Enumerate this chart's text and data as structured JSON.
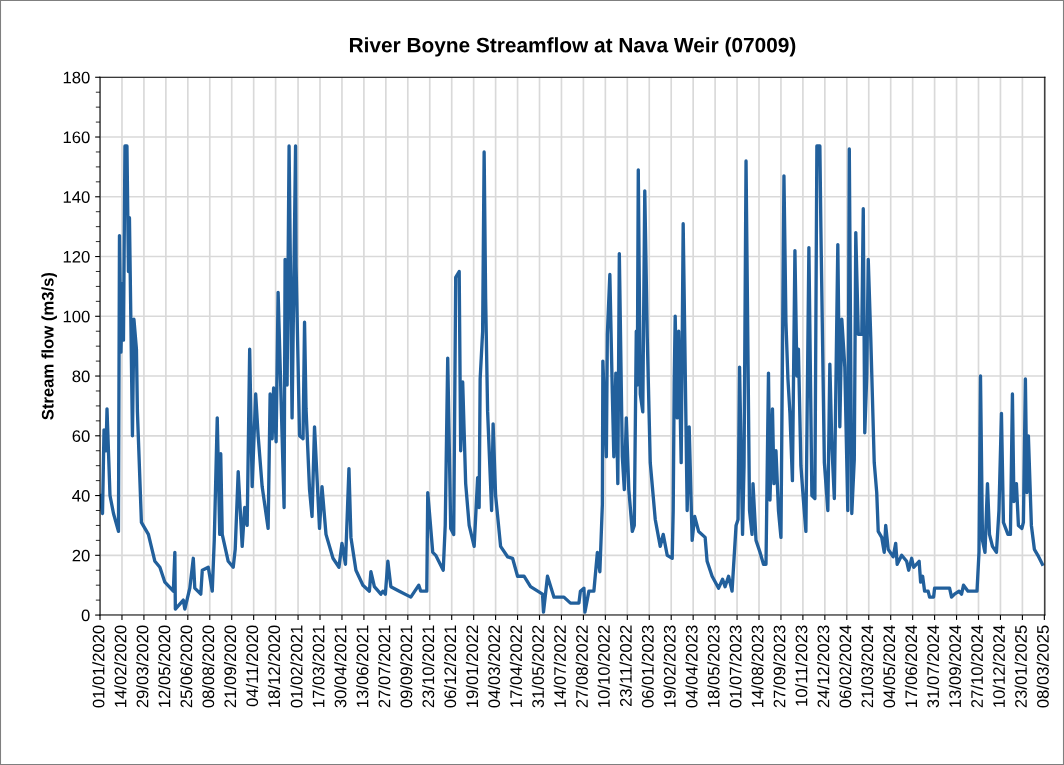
{
  "chart_data": {
    "type": "line",
    "title": "River Boyne Streamflow at Nava Weir (07009)",
    "ylabel": "Stream flow (m3/s)",
    "ylim": [
      0,
      180
    ],
    "yticks": [
      0,
      20,
      40,
      60,
      80,
      100,
      120,
      140,
      160,
      180
    ],
    "xlim": [
      "2020-01-01",
      "2025-03-09"
    ],
    "xticks": [
      {
        "value": "2020-01-01",
        "label": "01/01/2020"
      },
      {
        "value": "2020-02-14",
        "label": "14/02/2020"
      },
      {
        "value": "2020-03-29",
        "label": "29/03/2020"
      },
      {
        "value": "2020-05-12",
        "label": "12/05/2020"
      },
      {
        "value": "2020-06-25",
        "label": "25/06/2020"
      },
      {
        "value": "2020-08-08",
        "label": "08/08/2020"
      },
      {
        "value": "2020-09-21",
        "label": "21/09/2020"
      },
      {
        "value": "2020-11-04",
        "label": "04/11/2020"
      },
      {
        "value": "2020-12-18",
        "label": "18/12/2020"
      },
      {
        "value": "2021-02-01",
        "label": "01/02/2021"
      },
      {
        "value": "2021-03-17",
        "label": "17/03/2021"
      },
      {
        "value": "2021-04-30",
        "label": "30/04/2021"
      },
      {
        "value": "2021-06-13",
        "label": "13/06/2021"
      },
      {
        "value": "2021-07-27",
        "label": "27/07/2021"
      },
      {
        "value": "2021-09-09",
        "label": "09/09/2021"
      },
      {
        "value": "2021-10-23",
        "label": "23/10/2021"
      },
      {
        "value": "2021-12-06",
        "label": "06/12/2021"
      },
      {
        "value": "2022-01-19",
        "label": "19/01/2022"
      },
      {
        "value": "2022-03-04",
        "label": "04/03/2022"
      },
      {
        "value": "2022-04-17",
        "label": "17/04/2022"
      },
      {
        "value": "2022-05-31",
        "label": "31/05/2022"
      },
      {
        "value": "2022-07-14",
        "label": "14/07/2022"
      },
      {
        "value": "2022-08-27",
        "label": "27/08/2022"
      },
      {
        "value": "2022-10-10",
        "label": "10/10/2022"
      },
      {
        "value": "2022-11-23",
        "label": "23/11/2022"
      },
      {
        "value": "2023-01-06",
        "label": "06/01/2023"
      },
      {
        "value": "2023-02-19",
        "label": "19/02/2023"
      },
      {
        "value": "2023-04-04",
        "label": "04/04/2023"
      },
      {
        "value": "2023-05-18",
        "label": "18/05/2023"
      },
      {
        "value": "2023-07-01",
        "label": "01/07/2023"
      },
      {
        "value": "2023-08-14",
        "label": "14/08/2023"
      },
      {
        "value": "2023-09-27",
        "label": "27/09/2023"
      },
      {
        "value": "2023-11-10",
        "label": "10/11/2023"
      },
      {
        "value": "2023-12-24",
        "label": "24/12/2023"
      },
      {
        "value": "2024-02-06",
        "label": "06/02/2024"
      },
      {
        "value": "2024-03-21",
        "label": "21/03/2024"
      },
      {
        "value": "2024-05-04",
        "label": "04/05/2024"
      },
      {
        "value": "2024-06-17",
        "label": "17/06/2024"
      },
      {
        "value": "2024-07-31",
        "label": "31/07/2024"
      },
      {
        "value": "2024-09-13",
        "label": "13/09/2024"
      },
      {
        "value": "2024-10-27",
        "label": "27/10/2024"
      },
      {
        "value": "2024-12-10",
        "label": "10/12/2024"
      },
      {
        "value": "2025-01-23",
        "label": "23/01/2025"
      },
      {
        "value": "2025-03-08",
        "label": "08/03/2025"
      }
    ],
    "grid": true,
    "legend": false,
    "marker": "none",
    "line_style": "solid",
    "series": [
      {
        "color": "#22609c",
        "x": [
          "2020-01-01",
          "2020-01-06",
          "2020-01-09",
          "2020-01-13",
          "2020-01-15",
          "2020-01-21",
          "2020-01-28",
          "2020-02-07",
          "2020-02-09",
          "2020-02-12",
          "2020-02-15",
          "2020-02-17",
          "2020-02-20",
          "2020-02-24",
          "2020-02-27",
          "2020-02-29",
          "2020-03-06",
          "2020-03-09",
          "2020-03-14",
          "2020-03-16",
          "2020-03-24",
          "2020-04-07",
          "2020-04-20",
          "2020-04-30",
          "2020-05-10",
          "2020-05-27",
          "2020-05-30",
          "2020-05-31",
          "2020-06-16",
          "2020-06-19",
          "2020-06-29",
          "2020-07-06",
          "2020-07-09",
          "2020-07-21",
          "2020-07-24",
          "2020-08-05",
          "2020-08-13",
          "2020-08-17",
          "2020-08-23",
          "2020-08-28",
          "2020-08-30",
          "2020-09-02",
          "2020-09-14",
          "2020-09-24",
          "2020-09-28",
          "2020-10-04",
          "2020-10-12",
          "2020-10-17",
          "2020-10-22",
          "2020-10-27",
          "2020-11-01",
          "2020-11-08",
          "2020-11-13",
          "2020-11-21",
          "2020-12-03",
          "2020-12-07",
          "2020-12-11",
          "2020-12-14",
          "2020-12-19",
          "2020-12-23",
          "2021-01-04",
          "2021-01-06",
          "2021-01-10",
          "2021-01-14",
          "2021-01-20",
          "2021-01-27",
          "2021-01-28",
          "2021-02-04",
          "2021-02-11",
          "2021-02-14",
          "2021-02-17",
          "2021-02-24",
          "2021-03-01",
          "2021-03-06",
          "2021-03-16",
          "2021-03-21",
          "2021-03-29",
          "2021-04-12",
          "2021-04-24",
          "2021-04-30",
          "2021-05-07",
          "2021-05-14",
          "2021-05-18",
          "2021-05-28",
          "2021-06-11",
          "2021-06-24",
          "2021-06-27",
          "2021-07-04",
          "2021-07-17",
          "2021-07-21",
          "2021-07-26",
          "2021-07-31",
          "2021-08-06",
          "2021-08-23",
          "2021-09-15",
          "2021-10-01",
          "2021-10-05",
          "2021-10-17",
          "2021-10-19",
          "2021-10-22",
          "2021-10-29",
          "2021-11-04",
          "2021-11-19",
          "2021-11-23",
          "2021-11-28",
          "2021-12-04",
          "2021-12-10",
          "2021-12-14",
          "2021-12-21",
          "2021-12-24",
          "2021-12-28",
          "2022-01-03",
          "2022-01-10",
          "2022-01-20",
          "2022-01-27",
          "2022-01-30",
          "2022-02-01",
          "2022-02-06",
          "2022-02-09",
          "2022-02-12",
          "2022-02-16",
          "2022-02-24",
          "2022-02-27",
          "2022-03-04",
          "2022-03-14",
          "2022-03-28",
          "2022-04-07",
          "2022-04-17",
          "2022-04-30",
          "2022-05-13",
          "2022-06-06",
          "2022-06-08",
          "2022-06-16",
          "2022-06-29",
          "2022-07-19",
          "2022-08-01",
          "2022-08-18",
          "2022-08-21",
          "2022-08-28",
          "2022-08-30",
          "2022-09-07",
          "2022-09-17",
          "2022-09-24",
          "2022-09-29",
          "2022-10-04",
          "2022-10-05",
          "2022-10-12",
          "2022-10-14",
          "2022-10-19",
          "2022-10-24",
          "2022-10-27",
          "2022-10-31",
          "2022-11-04",
          "2022-11-07",
          "2022-11-13",
          "2022-11-17",
          "2022-11-21",
          "2022-11-26",
          "2022-12-03",
          "2022-12-07",
          "2022-12-11",
          "2022-12-13",
          "2022-12-15",
          "2022-12-19",
          "2022-12-24",
          "2022-12-28",
          "2023-01-02",
          "2023-01-08",
          "2023-01-18",
          "2023-01-28",
          "2023-02-03",
          "2023-02-11",
          "2023-02-21",
          "2023-02-23",
          "2023-02-25",
          "2023-02-27",
          "2023-03-03",
          "2023-03-06",
          "2023-03-11",
          "2023-03-15",
          "2023-03-23",
          "2023-03-27",
          "2023-04-02",
          "2023-04-07",
          "2023-04-15",
          "2023-04-28",
          "2023-05-02",
          "2023-05-12",
          "2023-05-25",
          "2023-06-02",
          "2023-06-07",
          "2023-06-14",
          "2023-06-21",
          "2023-06-29",
          "2023-07-03",
          "2023-07-06",
          "2023-07-12",
          "2023-07-15",
          "2023-07-19",
          "2023-07-26",
          "2023-07-31",
          "2023-08-02",
          "2023-08-08",
          "2023-08-16",
          "2023-08-23",
          "2023-08-28",
          "2023-09-02",
          "2023-09-05",
          "2023-09-10",
          "2023-09-13",
          "2023-09-17",
          "2023-09-22",
          "2023-09-27",
          "2023-10-03",
          "2023-10-07",
          "2023-10-11",
          "2023-10-15",
          "2023-10-20",
          "2023-10-25",
          "2023-10-29",
          "2023-11-01",
          "2023-11-06",
          "2023-11-11",
          "2023-11-16",
          "2023-11-22",
          "2023-11-28",
          "2023-12-04",
          "2023-12-08",
          "2023-12-14",
          "2023-12-16",
          "2023-12-23",
          "2023-12-30",
          "2024-01-03",
          "2024-01-07",
          "2024-01-12",
          "2024-01-19",
          "2024-01-23",
          "2024-01-27",
          "2024-02-02",
          "2024-02-08",
          "2024-02-11",
          "2024-02-16",
          "2024-02-21",
          "2024-02-24",
          "2024-02-29",
          "2024-03-07",
          "2024-03-10",
          "2024-03-13",
          "2024-03-17",
          "2024-03-20",
          "2024-03-25",
          "2024-04-01",
          "2024-04-06",
          "2024-04-09",
          "2024-04-16",
          "2024-04-21",
          "2024-04-24",
          "2024-04-29",
          "2024-05-09",
          "2024-05-14",
          "2024-05-17",
          "2024-05-26",
          "2024-06-05",
          "2024-06-09",
          "2024-06-15",
          "2024-06-19",
          "2024-06-30",
          "2024-07-03",
          "2024-07-07",
          "2024-07-11",
          "2024-07-18",
          "2024-07-21",
          "2024-07-29",
          "2024-07-31",
          "2024-08-30",
          "2024-09-03",
          "2024-09-09",
          "2024-09-18",
          "2024-09-23",
          "2024-09-27",
          "2024-10-06",
          "2024-10-24",
          "2024-10-28",
          "2024-10-31",
          "2024-11-04",
          "2024-11-09",
          "2024-11-14",
          "2024-11-18",
          "2024-11-24",
          "2024-12-02",
          "2024-12-07",
          "2024-12-12",
          "2024-12-16",
          "2024-12-25",
          "2024-12-30",
          "2025-01-03",
          "2025-01-06",
          "2025-01-11",
          "2025-01-15",
          "2025-01-22",
          "2025-01-25",
          "2025-01-29",
          "2025-02-01",
          "2025-02-04",
          "2025-02-10",
          "2025-02-16",
          "2025-02-23",
          "2025-03-04"
        ],
        "values": [
          40,
          34,
          62,
          55,
          69,
          40,
          34,
          28,
          127,
          88,
          111,
          92,
          157,
          157,
          115,
          133,
          60,
          99,
          89,
          68,
          31,
          27,
          18,
          16,
          11,
          8,
          21,
          2,
          5,
          2,
          9,
          19,
          9,
          7,
          15,
          16,
          8,
          25,
          66,
          27,
          54,
          27,
          18,
          16,
          22,
          48,
          23,
          36,
          30,
          89,
          43,
          74,
          60,
          43,
          29,
          74,
          59,
          76,
          58,
          108,
          36,
          119,
          77,
          157,
          66,
          157,
          117,
          60,
          59,
          98,
          69,
          42,
          33,
          63,
          29,
          43,
          27,
          19,
          16,
          24,
          17,
          49,
          26,
          15,
          10,
          8,
          14.5,
          9.5,
          7,
          8,
          7,
          18,
          9.5,
          8,
          6,
          10,
          8,
          8,
          41,
          35,
          21,
          20,
          15,
          30,
          86,
          29,
          27,
          113,
          115,
          55,
          78,
          44,
          30,
          23,
          46,
          36,
          79,
          95,
          155,
          106,
          68,
          35,
          64,
          40,
          23,
          19.5,
          19,
          13,
          13,
          9.5,
          7,
          1,
          13,
          6,
          6,
          4,
          4,
          8,
          9,
          1,
          8,
          8,
          21,
          14.5,
          37,
          85,
          53,
          94,
          114,
          74,
          53,
          81,
          44,
          121,
          53,
          42,
          66,
          42,
          28,
          30,
          95,
          77,
          149,
          74,
          68,
          142,
          93,
          51,
          32,
          23,
          27,
          20,
          19,
          35,
          78,
          100,
          66,
          95,
          51,
          131,
          35,
          63,
          25,
          33,
          28,
          26,
          18,
          13,
          9,
          12,
          9.5,
          13,
          8,
          30,
          32,
          83,
          27,
          50,
          152,
          35,
          27,
          44,
          25,
          21,
          17,
          17,
          81,
          38.5,
          69,
          44,
          55,
          35,
          26,
          147,
          98,
          79,
          67.5,
          45,
          122,
          80,
          89,
          50,
          38.5,
          28,
          123,
          40,
          39,
          157,
          157,
          130,
          51,
          35,
          84,
          57,
          39,
          124,
          63,
          99,
          83,
          35,
          156,
          34,
          52,
          128,
          94,
          94,
          136,
          61,
          80,
          119,
          93,
          51,
          41,
          28,
          26,
          21,
          30,
          22,
          19.5,
          24,
          17,
          20,
          18,
          15,
          19,
          16,
          18,
          11,
          13,
          8,
          8,
          6,
          6,
          9,
          9,
          6,
          7,
          8,
          7,
          10,
          8,
          8,
          21,
          80,
          25,
          21,
          44,
          27,
          23,
          21,
          35,
          67.5,
          31,
          27,
          27,
          74,
          38,
          44,
          30,
          29,
          31,
          79,
          41,
          60,
          30,
          22,
          20,
          17
        ]
      }
    ]
  }
}
